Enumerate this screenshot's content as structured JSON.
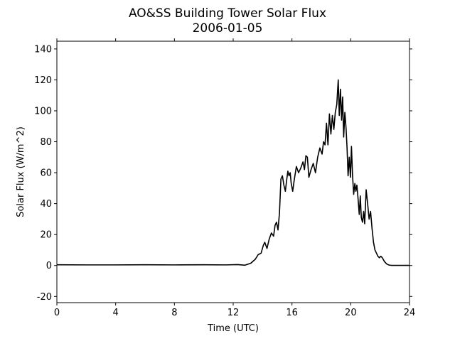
{
  "chart_data": {
    "type": "line",
    "title": "AO&SS Building Tower Solar Flux",
    "subtitle": "2006-01-05",
    "xlabel": "Time (UTC)",
    "ylabel": "Solar Flux (W/m^2)",
    "xlim": [
      0,
      24
    ],
    "ylim": [
      -24,
      145
    ],
    "xticks": [
      0,
      4,
      8,
      12,
      16,
      20,
      24
    ],
    "yticks": [
      -20,
      0,
      20,
      40,
      60,
      80,
      100,
      120,
      140
    ],
    "grid": false,
    "legend": "none",
    "series": [
      {
        "color": "#000000",
        "x": [
          0,
          2,
          4,
          6,
          8,
          10,
          11.5,
          12.3,
          12.8,
          13.2,
          13.5,
          13.7,
          13.9,
          14.05,
          14.15,
          14.3,
          14.45,
          14.6,
          14.75,
          14.85,
          14.95,
          15.05,
          15.15,
          15.25,
          15.35,
          15.45,
          15.55,
          15.65,
          15.72,
          15.8,
          15.88,
          15.95,
          16.05,
          16.15,
          16.3,
          16.45,
          16.6,
          16.75,
          16.85,
          16.95,
          17.05,
          17.15,
          17.3,
          17.45,
          17.6,
          17.75,
          17.9,
          18.05,
          18.15,
          18.25,
          18.35,
          18.45,
          18.55,
          18.65,
          18.75,
          18.85,
          18.95,
          19.05,
          19.15,
          19.22,
          19.3,
          19.38,
          19.45,
          19.52,
          19.6,
          19.68,
          19.75,
          19.82,
          19.9,
          19.98,
          20.05,
          20.12,
          20.2,
          20.28,
          20.35,
          20.42,
          20.5,
          20.58,
          20.65,
          20.72,
          20.8,
          20.88,
          20.95,
          21.05,
          21.15,
          21.25,
          21.35,
          21.45,
          21.55,
          21.65,
          21.75,
          21.85,
          21.95,
          22.05,
          22.15,
          22.3,
          22.45,
          22.6,
          22.75,
          22.9,
          23.1,
          24
        ],
        "values": [
          0.5,
          0.4,
          0.4,
          0.5,
          0.4,
          0.5,
          0.4,
          0.6,
          0.2,
          1.5,
          4,
          7,
          8,
          13,
          15,
          11,
          17,
          21,
          19,
          26,
          28,
          23,
          34,
          56,
          58,
          52,
          48,
          56,
          61,
          58,
          60,
          53,
          48,
          55,
          64,
          60,
          63,
          67,
          62,
          71,
          70,
          57,
          62,
          66,
          60,
          70,
          76,
          72,
          80,
          78,
          92,
          78,
          98,
          85,
          97,
          88,
          99,
          104,
          120,
          97,
          114,
          94,
          109,
          83,
          99,
          89,
          76,
          58,
          70,
          57,
          77,
          59,
          46,
          53,
          48,
          52,
          43,
          33,
          45,
          31,
          28,
          35,
          27,
          49,
          40,
          30,
          35,
          24,
          15,
          10,
          8,
          6,
          5,
          6,
          5,
          2.5,
          1,
          0.3,
          0.1,
          0.1,
          0.1,
          0.1
        ]
      }
    ]
  }
}
